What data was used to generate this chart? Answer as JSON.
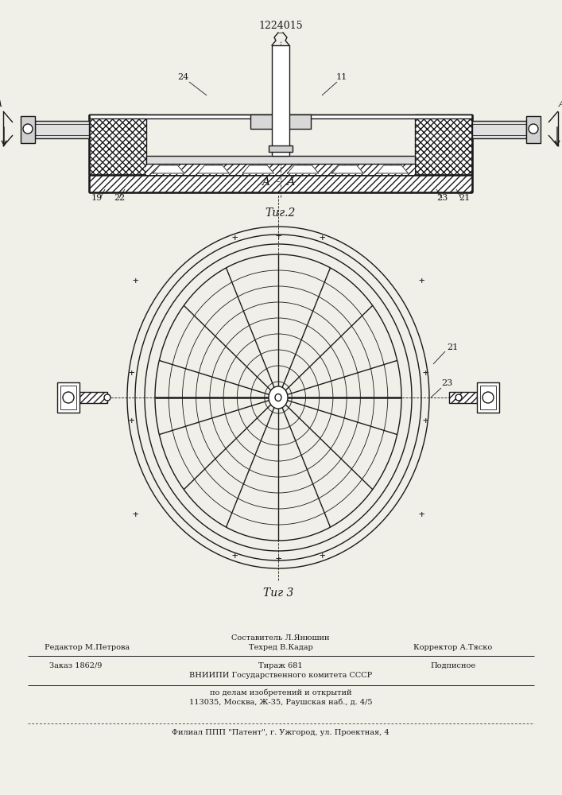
{
  "bg_color": "#f0efe8",
  "line_color": "#1a1a1a",
  "patent_number": "1224015",
  "fig2_label": "Τиг.2",
  "fig3_label": "Τиг 3",
  "footer_col1": "Редактор М.Петрова",
  "footer_col2_1": "Составитель Л.Янюшин",
  "footer_col2_2": "Техред В.Кадар",
  "footer_col3": "Корректор А.Тяско",
  "footer_order": "Заказ 1862/9",
  "footer_tiraj": "Тираж 681",
  "footer_podp": "Подписное",
  "footer_vni1": "ВНИИПИ Государственного комитета СССР",
  "footer_vni2": "по делам изобретений и открытий",
  "footer_vni3": "113035, Москва, Ж-35, Раушская наб., д. 4/5",
  "footer_filial": "Филиал ППП \"Патент\", г. Ужгород, ул. Проектная, 4"
}
